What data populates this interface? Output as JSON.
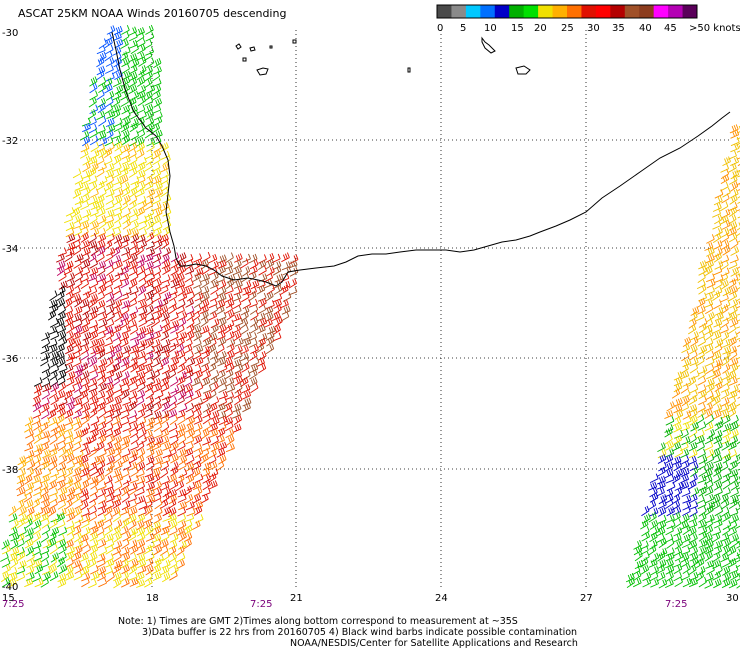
{
  "title": "ASCAT 25KM NOAA Winds 20160705 descending",
  "legend": {
    "colors": [
      "#4a4a4a",
      "#8a8a8a",
      "#00c8ff",
      "#0070ff",
      "#0000c8",
      "#00b000",
      "#00e000",
      "#f0e000",
      "#ffb000",
      "#ff7000",
      "#e01000",
      "#ff0000",
      "#b40000",
      "#a05028",
      "#8c3c1e",
      "#ff00ff",
      "#b400b4",
      "#5a005a"
    ],
    "labels": [
      "0",
      "5",
      "10",
      "15",
      "20",
      "25",
      "30",
      "35",
      "40",
      "45",
      ">50 knots"
    ]
  },
  "map": {
    "lon_range": [
      15,
      30
    ],
    "lat_range": [
      -30,
      -40
    ],
    "lon_ticks": [
      "15",
      "18",
      "21",
      "24",
      "27",
      "30"
    ],
    "lat_ticks": [
      "-30",
      "-32",
      "-34",
      "-36",
      "-38",
      "-40"
    ]
  },
  "times": [
    "7:25",
    "7:25",
    "7:25"
  ],
  "notes": [
    "Note: 1) Times are GMT 2)Times along bottom correspond to measurement at ~35S",
    "3)Data buffer is 22 hrs from 20160705 4) Black wind barbs indicate possible contamination",
    "NOAA/NESDIS/Center for Satellite Applications and Research"
  ]
}
